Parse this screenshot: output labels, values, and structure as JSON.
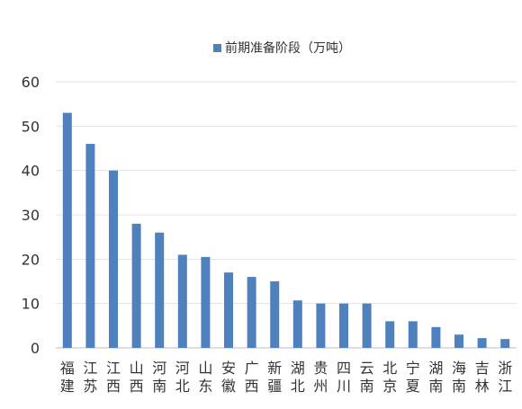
{
  "chart_data": {
    "type": "bar",
    "title": "",
    "xlabel": "",
    "ylabel": "",
    "ylim": [
      0,
      60
    ],
    "yticks": [
      0,
      10,
      20,
      30,
      40,
      50,
      60
    ],
    "grid": true,
    "legend_position": "top",
    "bar_color": "#4f81bd",
    "categories": [
      "福建",
      "江苏",
      "江西",
      "山西",
      "河南",
      "河北",
      "山东",
      "安徽",
      "广西",
      "新疆",
      "湖北",
      "贵州",
      "四川",
      "云南",
      "北京",
      "宁夏",
      "湖南",
      "海南",
      "吉林",
      "浙江"
    ],
    "series": [
      {
        "name": "前期准备阶段（万吨）",
        "values": [
          53,
          46,
          40,
          28,
          26,
          21,
          20.5,
          17,
          16,
          15,
          10.7,
          10,
          10,
          10,
          6,
          6,
          4.7,
          3,
          2.2,
          2
        ]
      }
    ]
  }
}
